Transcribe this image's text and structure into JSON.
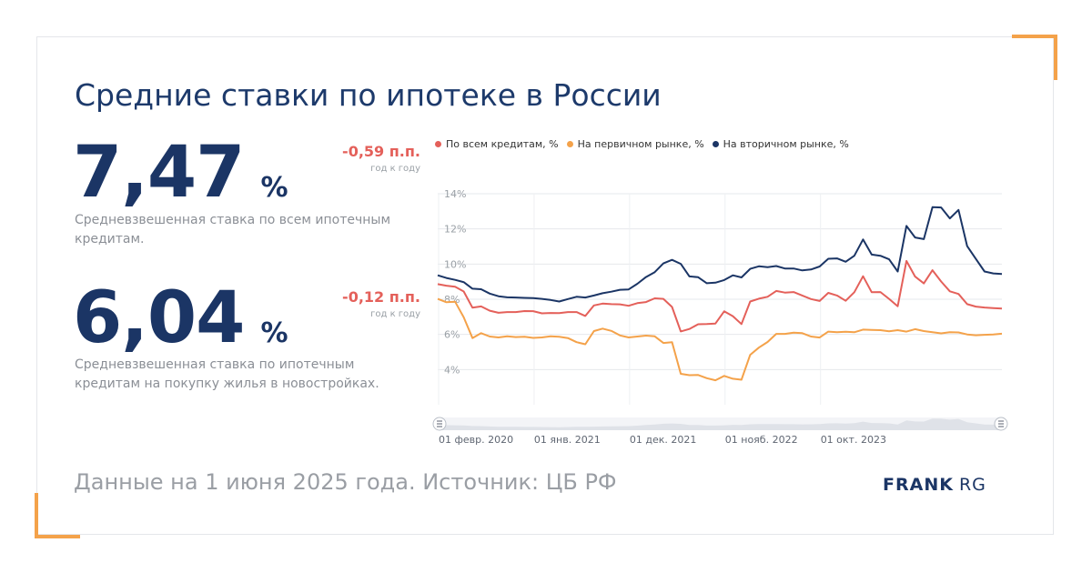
{
  "title": "Средние ставки по ипотеке в России",
  "kpi1": {
    "value": "7,47",
    "unit": "%",
    "delta": "-0,59 п.п.",
    "period": "год к году",
    "description": "Средневзвешенная ставка по всем ипотечным кредитам."
  },
  "kpi2": {
    "value": "6,04",
    "unit": "%",
    "delta": "-0,12 п.п.",
    "period": "год к году",
    "description": "Средневзвешенная ставка по ипотечным кредитам на покупку жилья в новостройках."
  },
  "footer": "Данные на 1 июня 2025 года. Источник: ЦБ РФ",
  "logo": {
    "bold": "FRANK",
    "light": "RG"
  },
  "colors": {
    "accent": "#f4a24a",
    "navy": "#1b3565",
    "red": "#e4605a",
    "orange": "#f4a24a"
  },
  "chart_data": {
    "type": "line",
    "ylim": [
      2,
      14
    ],
    "y_ticks": [
      "4%",
      "6%",
      "8%",
      "10%",
      "12%",
      "14%"
    ],
    "y_tick_values": [
      4,
      6,
      8,
      10,
      12,
      14
    ],
    "x_ticks": [
      "01 февр. 2020",
      "01 янв. 2021",
      "01 дек. 2021",
      "01 нояб. 2022",
      "01 окт. 2023"
    ],
    "grid": true,
    "legend_position": "top",
    "navigator": true,
    "series": [
      {
        "name": "По всем кредитам, %",
        "color": "#e4605a",
        "values": [
          8.86,
          8.77,
          8.71,
          8.44,
          7.52,
          7.59,
          7.35,
          7.23,
          7.27,
          7.27,
          7.33,
          7.32,
          7.2,
          7.22,
          7.21,
          7.27,
          7.27,
          7.05,
          7.65,
          7.75,
          7.72,
          7.71,
          7.63,
          7.78,
          7.84,
          8.05,
          8.02,
          7.56,
          6.17,
          6.31,
          6.58,
          6.59,
          6.62,
          7.31,
          7.04,
          6.59,
          7.87,
          8.03,
          8.14,
          8.47,
          8.38,
          8.41,
          8.21,
          8.01,
          7.9,
          8.36,
          8.21,
          7.91,
          8.4,
          9.31,
          8.4,
          8.41,
          8.02,
          7.6,
          10.18,
          9.29,
          8.9,
          9.65,
          9.01,
          8.45,
          8.3,
          7.72,
          7.58,
          7.53,
          7.5,
          7.47
        ]
      },
      {
        "name": "На первичном рынке, %",
        "color": "#f4a24a",
        "values": [
          8.02,
          7.83,
          7.86,
          6.97,
          5.79,
          6.07,
          5.88,
          5.83,
          5.89,
          5.85,
          5.87,
          5.8,
          5.83,
          5.89,
          5.87,
          5.79,
          5.56,
          5.44,
          6.19,
          6.33,
          6.2,
          5.94,
          5.83,
          5.88,
          5.93,
          5.89,
          5.51,
          5.56,
          3.76,
          3.68,
          3.69,
          3.51,
          3.39,
          3.64,
          3.48,
          3.42,
          4.84,
          5.25,
          5.57,
          6.03,
          6.03,
          6.1,
          6.07,
          5.88,
          5.82,
          6.16,
          6.12,
          6.15,
          6.12,
          6.27,
          6.25,
          6.24,
          6.18,
          6.24,
          6.16,
          6.3,
          6.19,
          6.13,
          6.06,
          6.12,
          6.11,
          6.0,
          5.95,
          5.98,
          6.0,
          6.04
        ]
      },
      {
        "name": "На вторичном рынке, %",
        "color": "#1b3565",
        "values": [
          9.36,
          9.21,
          9.1,
          8.97,
          8.6,
          8.57,
          8.32,
          8.17,
          8.11,
          8.1,
          8.08,
          8.06,
          8.02,
          7.96,
          7.87,
          8.01,
          8.14,
          8.1,
          8.21,
          8.34,
          8.43,
          8.54,
          8.56,
          8.88,
          9.26,
          9.54,
          10.04,
          10.24,
          10.01,
          9.3,
          9.25,
          8.91,
          8.94,
          9.09,
          9.36,
          9.24,
          9.73,
          9.87,
          9.82,
          9.89,
          9.75,
          9.75,
          9.64,
          9.69,
          9.86,
          10.3,
          10.32,
          10.13,
          10.47,
          11.4,
          10.54,
          10.47,
          10.27,
          9.58,
          12.17,
          11.51,
          11.42,
          13.24,
          13.22,
          12.6,
          13.08,
          11.02,
          10.29,
          9.58,
          9.47,
          9.44
        ]
      }
    ]
  }
}
